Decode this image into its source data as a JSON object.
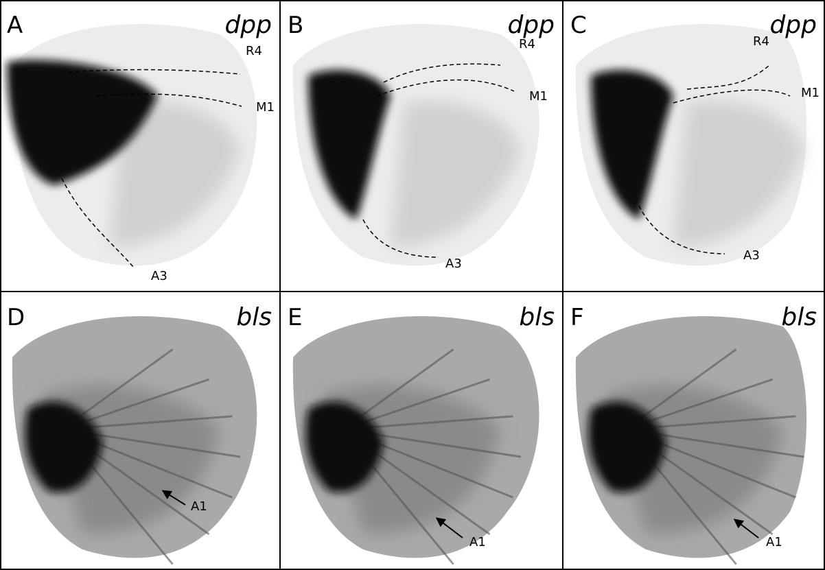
{
  "panels": [
    {
      "letter": "A",
      "gene": "dpp",
      "labels": [
        "R4",
        "M1",
        "A3"
      ]
    },
    {
      "letter": "B",
      "gene": "dpp",
      "labels": [
        "R4",
        "M1",
        "A3"
      ]
    },
    {
      "letter": "C",
      "gene": "dpp",
      "labels": [
        "R4",
        "M1",
        "A3"
      ]
    },
    {
      "letter": "D",
      "gene": "bls",
      "labels": [
        "A1"
      ]
    },
    {
      "letter": "E",
      "gene": "bls",
      "labels": [
        "A1"
      ]
    },
    {
      "letter": "F",
      "gene": "bls",
      "labels": [
        "A1"
      ]
    }
  ]
}
